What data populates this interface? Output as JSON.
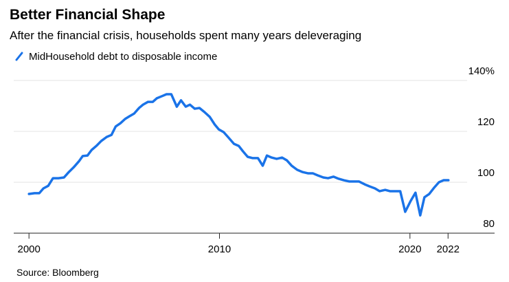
{
  "chart_data": {
    "type": "line",
    "title": "Better Financial Shape",
    "subtitle": "After the financial crisis, households spent many years deleveraging",
    "source": "Source: Bloomberg",
    "x": [
      2000.0,
      2000.29,
      2000.54,
      2000.76,
      2001.01,
      2001.26,
      2001.55,
      2001.84,
      2002.09,
      2002.35,
      2002.64,
      2002.82,
      2003.07,
      2003.29,
      2003.54,
      2003.79,
      2004.08,
      2004.33,
      2004.55,
      2004.8,
      2005.05,
      2005.27,
      2005.52,
      2005.78,
      2005.99,
      2006.25,
      2006.5,
      2006.71,
      2006.97,
      2007.22,
      2007.47,
      2007.76,
      2007.98,
      2008.23,
      2008.45,
      2008.7,
      2008.95,
      2009.21,
      2009.49,
      2009.75,
      2009.96,
      2010.22,
      2010.47,
      2010.76,
      2011.01,
      2011.23,
      2011.48,
      2011.73,
      2012.02,
      2012.27,
      2012.49,
      2012.74,
      2013.0,
      2013.29,
      2013.54,
      2013.79,
      2014.08,
      2014.37,
      2014.66,
      2014.91,
      2015.16,
      2015.45,
      2015.7,
      2015.99,
      2016.25,
      2016.53,
      2016.82,
      2017.08,
      2017.33,
      2017.62,
      2017.87,
      2018.16,
      2018.41,
      2018.7,
      2018.95,
      2019.24,
      2019.49,
      2019.75,
      2020.04,
      2020.29,
      2020.54,
      2020.76,
      2021.01,
      2021.26,
      2021.52,
      2021.77,
      2022.02
    ],
    "series": [
      {
        "name": "MidHousehold debt to disposable income",
        "color": "#1a73e8",
        "values": [
          95.4,
          95.7,
          95.7,
          97.6,
          98.6,
          101.6,
          101.6,
          101.9,
          104,
          105.9,
          108.4,
          110.3,
          110.5,
          112.7,
          114.3,
          116.2,
          117.8,
          118.6,
          121.9,
          123.2,
          124.9,
          125.9,
          127,
          129.2,
          130.5,
          131.6,
          131.6,
          133,
          133.8,
          134.6,
          134.6,
          129.7,
          132.2,
          129.7,
          130.5,
          128.9,
          129.2,
          127.6,
          125.7,
          122.7,
          120.8,
          119.7,
          117.6,
          115.1,
          114.3,
          112.2,
          110,
          109.5,
          109.5,
          106.5,
          110.5,
          109.7,
          109.2,
          109.7,
          108.6,
          106.5,
          104.9,
          104,
          103.5,
          103.5,
          102.7,
          101.9,
          101.6,
          102.2,
          101.4,
          100.8,
          100.3,
          100.3,
          100.3,
          99.2,
          98.4,
          97.6,
          96.5,
          97,
          96.5,
          96.5,
          96.5,
          88.4,
          92.7,
          95.9,
          87,
          94.1,
          95.4,
          97.8,
          100,
          100.8,
          100.8
        ]
      }
    ],
    "xlim": [
      1999.2,
      2023.0
    ],
    "xticks": [
      2000,
      2010,
      2020,
      2022
    ],
    "ylim": [
      80,
      140
    ],
    "yticks": [
      80,
      100,
      120,
      {
        "value": 140,
        "label": "140%"
      }
    ],
    "grid": true
  }
}
